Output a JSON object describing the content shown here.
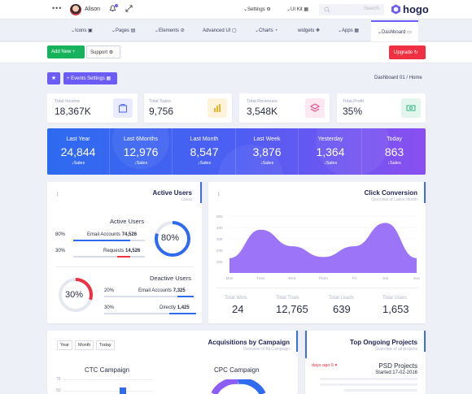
{
  "topbar": {
    "user_name": "Alison",
    "settings_label": "Settings",
    "uikit_label": "UI Kit",
    "search_placeholder": "Search",
    "brand": "hogo"
  },
  "nav": {
    "items": [
      "Icons",
      "Pages",
      "Elements",
      "Advanced UI",
      "Charts",
      "widgets",
      "Apps",
      "Dashboard"
    ],
    "active": "Dashboard"
  },
  "actions": {
    "add_new": "Add New +",
    "support": "Support",
    "upgrade": "Upgrade"
  },
  "toolbar": {
    "events_settings": "+ Events Settings",
    "breadcrumb": "Dashboard 01  /  Home"
  },
  "stats": [
    {
      "label": "Total Income",
      "value": "18,367K",
      "icon": "shopping-bag-icon",
      "color": "#e9ecff"
    },
    {
      "label": "Total Sales",
      "value": "9,756",
      "icon": "bar-chart-icon",
      "color": "#fff3d9"
    },
    {
      "label": "Total Revenues",
      "value": "3,548K",
      "icon": "layers-icon",
      "color": "#fde8f1"
    },
    {
      "label": "Total Profit",
      "value": "35%",
      "icon": "money-icon",
      "color": "#e2f6ee"
    }
  ],
  "banner": [
    {
      "period": "Last Year",
      "value": "24,844",
      "sub": "Sales"
    },
    {
      "period": "Last 6Months",
      "value": "12,976",
      "sub": "Sales"
    },
    {
      "period": "Last Month",
      "value": "8,547",
      "sub": "Sales"
    },
    {
      "period": "Last Week",
      "value": "3,876",
      "sub": "Sales"
    },
    {
      "period": "Yesterday",
      "value": "1,364",
      "sub": "Sales"
    },
    {
      "period": "Today",
      "value": "863",
      "sub": "Sales"
    }
  ],
  "active_users": {
    "title": "Active Users",
    "subtitle": "Users",
    "section_active": "Active Users",
    "active_percent": "80%",
    "active_fraction": 0.8,
    "rows_active": [
      {
        "pct": "80%",
        "label": "Email Accounts",
        "value": "74,526"
      },
      {
        "pct": "30%",
        "label": "Requests",
        "value": "14,526"
      }
    ],
    "section_deactive": "Deactive Users",
    "deactive_percent": "30%",
    "deactive_fraction": 0.3,
    "rows_deactive": [
      {
        "pct": "20%",
        "label": "Email Accounts",
        "value": "7,325"
      },
      {
        "pct": "30%",
        "label": "Directly",
        "value": "1,425"
      }
    ]
  },
  "click_conversion": {
    "title": "Click Conversion",
    "subtitle": "Overview of Latest Month",
    "stats": [
      {
        "label": "Total Wins",
        "value": "24"
      },
      {
        "label": "Total Trials",
        "value": "12,765"
      },
      {
        "label": "Total Leads",
        "value": "639"
      },
      {
        "label": "Total Users",
        "value": "1,653"
      }
    ]
  },
  "chart_data": {
    "type": "area",
    "categories": [
      "Mon",
      "Tues",
      "Wed",
      "Thurs",
      "Fri",
      "Sat",
      "Sun"
    ],
    "values": [
      130,
      380,
      235,
      140,
      235,
      440,
      130
    ],
    "ylim": [
      0,
      500
    ],
    "yticks": [
      "100",
      "200",
      "300",
      "400",
      "500"
    ],
    "color": "#8b5cf6",
    "grid": true
  },
  "acquisitions": {
    "title": "Acquisitions by Campaign",
    "subtitle": "Overview of All Campaign",
    "tabs": [
      "Year",
      "Month",
      "Today"
    ],
    "ctc_label": "CTC Campaign",
    "cpc_label": "CPC Campaign",
    "ctc_yticks": [
      "75",
      "50"
    ]
  },
  "projects": {
    "title": "Top Ongoing Projects",
    "subtitle": "Overview of all projects",
    "days_ago": "days ago 5",
    "project_name": "PSD Projects",
    "started": "Started:17-02-2016"
  }
}
